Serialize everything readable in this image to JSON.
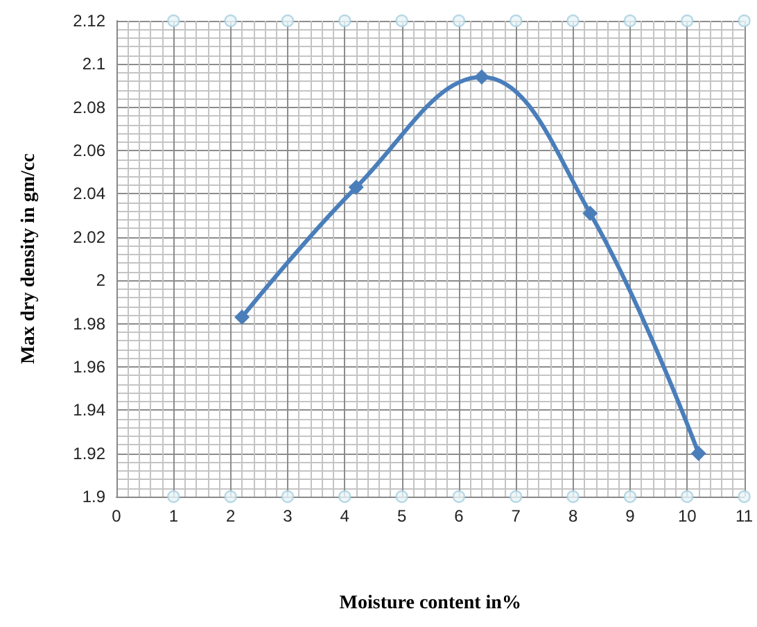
{
  "chart_data": {
    "type": "line",
    "xlabel": "Moisture content in%",
    "ylabel": "Max dry density in gm/cc",
    "series": [
      {
        "color": "#4a7ebb",
        "x": [
          2.2,
          4.2,
          6.4,
          8.3,
          10.2
        ],
        "values": [
          1.983,
          2.043,
          2.094,
          2.031,
          1.92
        ],
        "marker": "diamond"
      },
      {
        "type": "scatter",
        "color": "#a8d0e0",
        "x": [
          1,
          2,
          3,
          4,
          5,
          6,
          7,
          8,
          9,
          10,
          11
        ],
        "values": [
          2.12,
          2.12,
          2.12,
          2.12,
          2.12,
          2.12,
          2.12,
          2.12,
          2.12,
          2.12,
          2.12
        ],
        "marker": "circle"
      },
      {
        "type": "scatter",
        "color": "#a8d0e0",
        "x": [
          1,
          2,
          3,
          4,
          5,
          6,
          7,
          8,
          9,
          10,
          11
        ],
        "values": [
          1.9,
          1.9,
          1.9,
          1.9,
          1.9,
          1.9,
          1.9,
          1.9,
          1.9,
          1.9,
          1.9
        ],
        "marker": "circle"
      }
    ],
    "xlim": [
      0,
      11
    ],
    "xticks": [
      0,
      1,
      2,
      3,
      4,
      5,
      6,
      7,
      8,
      9,
      10,
      11
    ],
    "ylim": [
      1.9,
      2.12
    ],
    "yticks": [
      1.9,
      1.92,
      1.94,
      1.96,
      1.98,
      2,
      2.02,
      2.04,
      2.06,
      2.08,
      2.1,
      2.12
    ],
    "grid": true
  }
}
